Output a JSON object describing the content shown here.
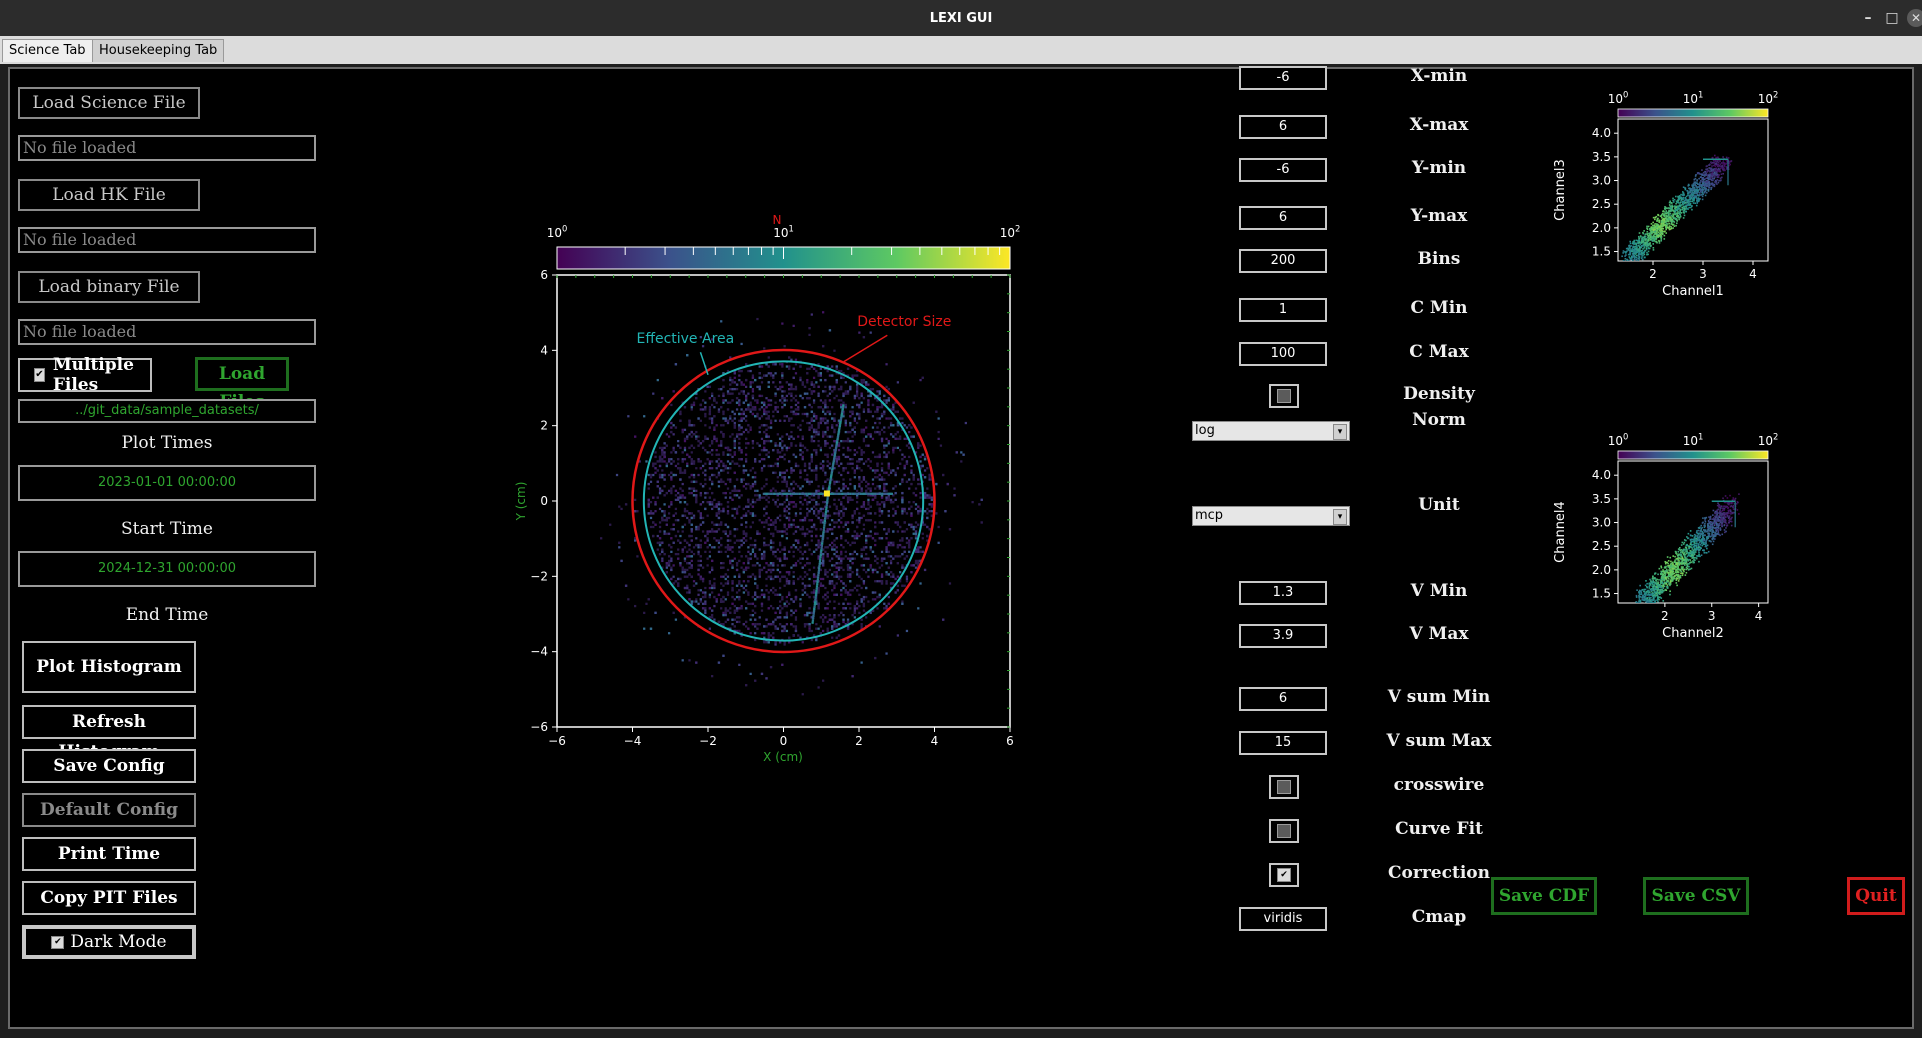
{
  "window": {
    "title": "LEXI GUI",
    "minimize_glyph": "–",
    "maximize_glyph": "□",
    "close_glyph": "✕"
  },
  "tabs": [
    {
      "label": "Science Tab"
    },
    {
      "label": "Housekeeping Tab"
    }
  ],
  "left": {
    "load_science": "Load Science File",
    "science_path": "No file loaded",
    "load_hk": "Load HK File",
    "hk_path": "No file loaded",
    "load_binary": "Load binary File",
    "binary_path": "No file loaded",
    "multiple_files": "Multiple Files",
    "load_files": "Load Files",
    "folder_path": "../git_data/sample_datasets/",
    "plot_times_label": "Plot Times",
    "start_value": "2023-01-01 00:00:00",
    "start_label": "Start Time",
    "end_value": "2024-12-31 00:00:00",
    "end_label": "End Time",
    "plot_histogram": "Plot Histogram",
    "refresh_histogram": "Refresh Histogram",
    "save_config": "Save Config",
    "default_config": "Default Config",
    "print_time": "Print Time",
    "copy_pit": "Copy PIT Files",
    "dark_mode": "Dark Mode"
  },
  "params": {
    "xmin": {
      "label": "X-min",
      "value": "-6"
    },
    "xmax": {
      "label": "X-max",
      "value": "6"
    },
    "ymin": {
      "label": "Y-min",
      "value": "-6"
    },
    "ymax": {
      "label": "Y-max",
      "value": "6"
    },
    "bins": {
      "label": "Bins",
      "value": "200"
    },
    "cmin": {
      "label": "C Min",
      "value": "1"
    },
    "cmax": {
      "label": "C Max",
      "value": "100"
    },
    "density": {
      "label": "Density",
      "checked": false
    },
    "norm": {
      "label": "Norm",
      "value": "log"
    },
    "unit": {
      "label": "Unit",
      "value": "mcp"
    },
    "vmin": {
      "label": "V Min",
      "value": "1.3"
    },
    "vmax": {
      "label": "V Max",
      "value": "3.9"
    },
    "vsum_min": {
      "label": "V sum Min",
      "value": "6"
    },
    "vsum_max": {
      "label": "V sum Max",
      "value": "15"
    },
    "crosswire": {
      "label": "crosswire",
      "checked": false
    },
    "curve_fit": {
      "label": "Curve Fit",
      "checked": false
    },
    "correction": {
      "label": "Correction",
      "checked": true
    },
    "cmap": {
      "label": "Cmap",
      "value": "viridis"
    }
  },
  "actions": {
    "save_cdf": "Save CDF",
    "save_csv": "Save CSV",
    "quit": "Quit"
  },
  "chart_data": [
    {
      "type": "heatmap",
      "title": "",
      "colorbar_label": "N",
      "colorbar_ticks": [
        "10^0",
        "10^1",
        "10^2"
      ],
      "colormap": "viridis",
      "color_scale": "log",
      "xlabel": "X (cm)",
      "ylabel": "Y (cm)",
      "xlim": [
        -6,
        6
      ],
      "ylim": [
        -6,
        6
      ],
      "xticks": [
        -6,
        -4,
        -2,
        0,
        2,
        4,
        6
      ],
      "yticks": [
        -6,
        -4,
        -2,
        0,
        2,
        4,
        6
      ],
      "circles": [
        {
          "name": "Effective Area",
          "center": [
            0,
            0
          ],
          "radius": 3.7,
          "color": "#22b5b5"
        },
        {
          "name": "Detector Size",
          "center": [
            0,
            0
          ],
          "radius": 4.0,
          "color": "#e01818"
        }
      ],
      "annotations": [
        {
          "text": "Effective Area",
          "color": "#22b5b5",
          "arrow_to": [
            -2.0,
            3.35
          ]
        },
        {
          "text": "Detector Size",
          "color": "#e01818",
          "arrow_to": [
            1.6,
            3.7
          ]
        }
      ],
      "hotspot": [
        1.15,
        0.2
      ]
    },
    {
      "type": "heatmap",
      "xlabel": "Channel1",
      "ylabel": "Channel3",
      "xlim": [
        1.3,
        4.3
      ],
      "ylim": [
        1.3,
        4.3
      ],
      "xticks": [
        2,
        3,
        4
      ],
      "yticks": [
        1.5,
        2.0,
        2.5,
        3.0,
        3.5,
        4.0
      ],
      "colorbar_ticks": [
        "10^0",
        "10^1",
        "10^2"
      ],
      "colormap": "viridis"
    },
    {
      "type": "heatmap",
      "xlabel": "Channel2",
      "ylabel": "Channel4",
      "xlim": [
        1.0,
        4.2
      ],
      "ylim": [
        1.3,
        4.3
      ],
      "xticks": [
        2,
        3,
        4
      ],
      "yticks": [
        1.5,
        2.0,
        2.5,
        3.0,
        3.5,
        4.0
      ],
      "colorbar_ticks": [
        "10^0",
        "10^1",
        "10^2"
      ],
      "colormap": "viridis"
    }
  ]
}
